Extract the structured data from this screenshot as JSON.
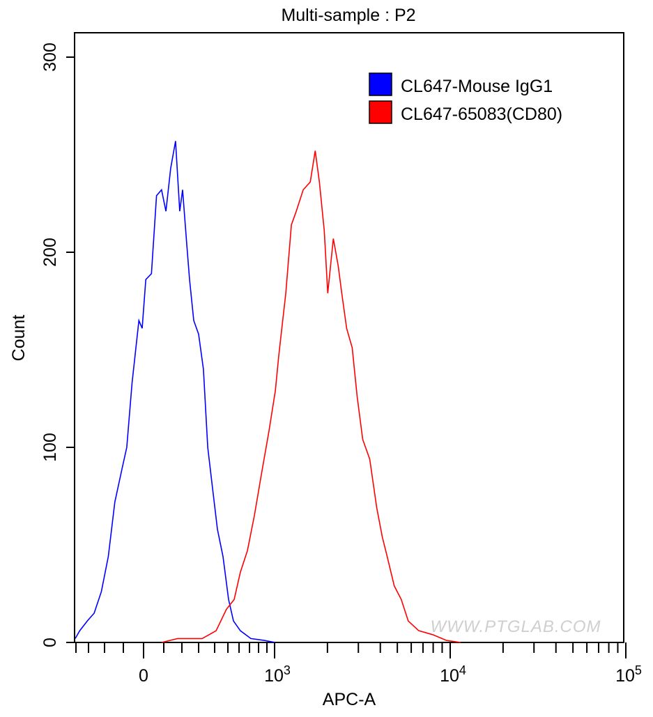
{
  "chart_data": {
    "type": "line",
    "title": "Multi-sample : P2",
    "xlabel": "APC-A",
    "ylabel": "Count",
    "x_scale": "biexponential",
    "xlim": [
      -420,
      100000
    ],
    "ylim": [
      0,
      310
    ],
    "x_tick_labels": [
      {
        "value": 0,
        "base": "0",
        "exp": ""
      },
      {
        "value": 1000,
        "base": "10",
        "exp": "3"
      },
      {
        "value": 10000,
        "base": "10",
        "exp": "4"
      },
      {
        "value": 100000,
        "base": "10",
        "exp": "5"
      }
    ],
    "y_ticks": [
      0,
      100,
      200,
      300
    ],
    "grid": false,
    "legend_position": "top-right",
    "watermark": "WWW.PTGLAB.COM",
    "series": [
      {
        "name": "CL647-Mouse IgG1",
        "color": "#0000ff",
        "points": [
          [
            -410,
            2
          ],
          [
            -370,
            6
          ],
          [
            -310,
            11
          ],
          [
            -265,
            15
          ],
          [
            -220,
            26
          ],
          [
            -180,
            44
          ],
          [
            -145,
            72
          ],
          [
            -105,
            90
          ],
          [
            -83,
            100
          ],
          [
            -57,
            133
          ],
          [
            -23,
            165
          ],
          [
            -7,
            161
          ],
          [
            11,
            186
          ],
          [
            39,
            189
          ],
          [
            64,
            229
          ],
          [
            89,
            232
          ],
          [
            112,
            221
          ],
          [
            138,
            243
          ],
          [
            165,
            257
          ],
          [
            188,
            221
          ],
          [
            204,
            232
          ],
          [
            229,
            204
          ],
          [
            246,
            186
          ],
          [
            271,
            165
          ],
          [
            300,
            158
          ],
          [
            330,
            140
          ],
          [
            357,
            100
          ],
          [
            387,
            79
          ],
          [
            421,
            58
          ],
          [
            463,
            44
          ],
          [
            506,
            22
          ],
          [
            550,
            11
          ],
          [
            613,
            6
          ],
          [
            715,
            2
          ],
          [
            875,
            1
          ],
          [
            1010,
            0
          ]
        ]
      },
      {
        "name": "CL647-65083(CD80)",
        "color": "#ff0000",
        "points": [
          [
            89,
            0
          ],
          [
            177,
            2
          ],
          [
            322,
            2
          ],
          [
            411,
            6
          ],
          [
            489,
            17
          ],
          [
            556,
            22
          ],
          [
            613,
            36
          ],
          [
            680,
            47
          ],
          [
            754,
            65
          ],
          [
            833,
            86
          ],
          [
            925,
            108
          ],
          [
            1010,
            129
          ],
          [
            1056,
            147
          ],
          [
            1158,
            179
          ],
          [
            1246,
            214
          ],
          [
            1329,
            221
          ],
          [
            1456,
            232
          ],
          [
            1597,
            236
          ],
          [
            1703,
            252
          ],
          [
            1799,
            236
          ],
          [
            1919,
            211
          ],
          [
            2008,
            179
          ],
          [
            2161,
            207
          ],
          [
            2304,
            193
          ],
          [
            2413,
            179
          ],
          [
            2572,
            161
          ],
          [
            2767,
            151
          ],
          [
            2952,
            126
          ],
          [
            3177,
            104
          ],
          [
            3482,
            94
          ],
          [
            3817,
            69
          ],
          [
            4107,
            54
          ],
          [
            4377,
            44
          ],
          [
            4800,
            29
          ],
          [
            5263,
            22
          ],
          [
            5768,
            11
          ],
          [
            6622,
            6
          ],
          [
            7943,
            4
          ],
          [
            9550,
            1
          ],
          [
            11480,
            0
          ]
        ]
      }
    ]
  }
}
